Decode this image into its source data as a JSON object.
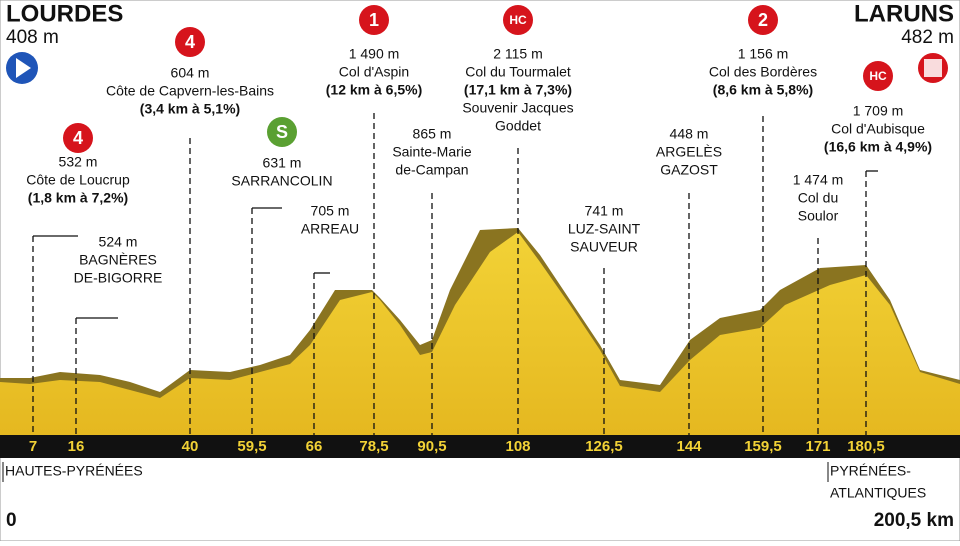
{
  "start": {
    "name": "LOURDES",
    "altitude": "408 m"
  },
  "finish": {
    "name": "LARUNS",
    "altitude": "482 m"
  },
  "waypoints": [
    {
      "badge": "4",
      "badge_color": "#d6141c",
      "lines": [
        "532 m",
        "Côte de Loucrup",
        "(1,8 km à 7,2%)"
      ]
    },
    {
      "lines": [
        "524 m",
        "BAGNÈRES",
        "DE-BIGORRE"
      ]
    },
    {
      "badge": "4",
      "badge_color": "#d6141c",
      "lines": [
        "604 m",
        "Côte de Capvern-les-Bains",
        "(3,4 km à 5,1%)"
      ]
    },
    {
      "badge": "S",
      "badge_color": "#5aa032",
      "lines": [
        "631 m",
        "SARRANCOLIN"
      ]
    },
    {
      "lines": [
        "705 m",
        "ARREAU"
      ]
    },
    {
      "badge": "1",
      "badge_color": "#d6141c",
      "lines": [
        "1 490 m",
        "Col d'Aspin",
        "(12 km à 6,5%)"
      ]
    },
    {
      "lines": [
        "865 m",
        "Sainte-Marie",
        "de-Campan"
      ]
    },
    {
      "badge": "HC",
      "badge_color": "#d6141c",
      "lines": [
        "2 115 m",
        "Col du Tourmalet",
        "(17,1 km à 7,3%)",
        "Souvenir Jacques",
        "Goddet"
      ]
    },
    {
      "lines": [
        "741 m",
        "LUZ-SAINT",
        "SAUVEUR"
      ]
    },
    {
      "lines": [
        "448 m",
        "ARGELÈS",
        "GAZOST"
      ]
    },
    {
      "badge": "2",
      "badge_color": "#d6141c",
      "lines": [
        "1 156 m",
        "Col des Bordères",
        "(8,6 km à 5,8%)"
      ]
    },
    {
      "lines": [
        "1 474 m",
        "Col du",
        "Soulor"
      ]
    },
    {
      "badge": "HC",
      "badge_color": "#d6141c",
      "lines": [
        "1 709 m",
        "Col d'Aubisque",
        "(16,6 km à 4,9%)"
      ]
    }
  ],
  "km_markers": [
    "7",
    "16",
    "40",
    "59,5",
    "66",
    "78,5",
    "90,5",
    "108",
    "126,5",
    "144",
    "159,5",
    "171",
    "180,5"
  ],
  "regions": [
    [
      "HAUTES-PYRÉNÉES"
    ],
    [
      "PYRÉNÉES-",
      "ATLANTIQUES"
    ]
  ],
  "distance": {
    "start": "0",
    "end": "200,5 km"
  }
}
